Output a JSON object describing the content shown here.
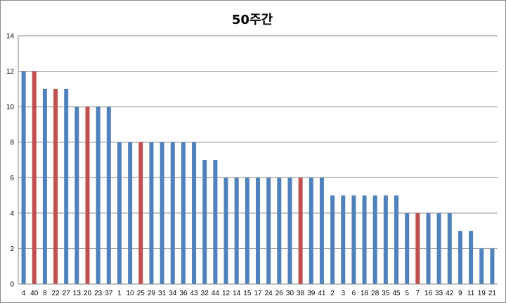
{
  "chart_data": {
    "type": "bar",
    "title": "50주간",
    "xlabel": "",
    "ylabel": "",
    "ylim": [
      0,
      14
    ],
    "yticks": [
      0,
      2,
      4,
      6,
      8,
      10,
      12,
      14
    ],
    "grid": true,
    "legend": "none",
    "categories": [
      "4",
      "40",
      "8",
      "22",
      "27",
      "13",
      "20",
      "23",
      "37",
      "1",
      "10",
      "25",
      "29",
      "31",
      "34",
      "36",
      "43",
      "32",
      "44",
      "12",
      "14",
      "15",
      "17",
      "24",
      "26",
      "30",
      "38",
      "39",
      "41",
      "2",
      "3",
      "6",
      "18",
      "28",
      "35",
      "45",
      "5",
      "7",
      "16",
      "33",
      "42",
      "9",
      "11",
      "19",
      "21"
    ],
    "values": [
      12,
      12,
      11,
      11,
      11,
      10,
      10,
      10,
      10,
      8,
      8,
      8,
      8,
      8,
      8,
      8,
      8,
      7,
      7,
      6,
      6,
      6,
      6,
      6,
      6,
      6,
      6,
      6,
      6,
      5,
      5,
      5,
      5,
      5,
      5,
      5,
      4,
      4,
      4,
      4,
      4,
      3,
      3,
      2,
      2
    ],
    "highlighted": [
      "40",
      "22",
      "20",
      "25",
      "38",
      "7"
    ],
    "colors": {
      "default": "#4f81bd",
      "highlight": "#c0504d",
      "grid": "#868686",
      "axis": "#868686"
    }
  }
}
